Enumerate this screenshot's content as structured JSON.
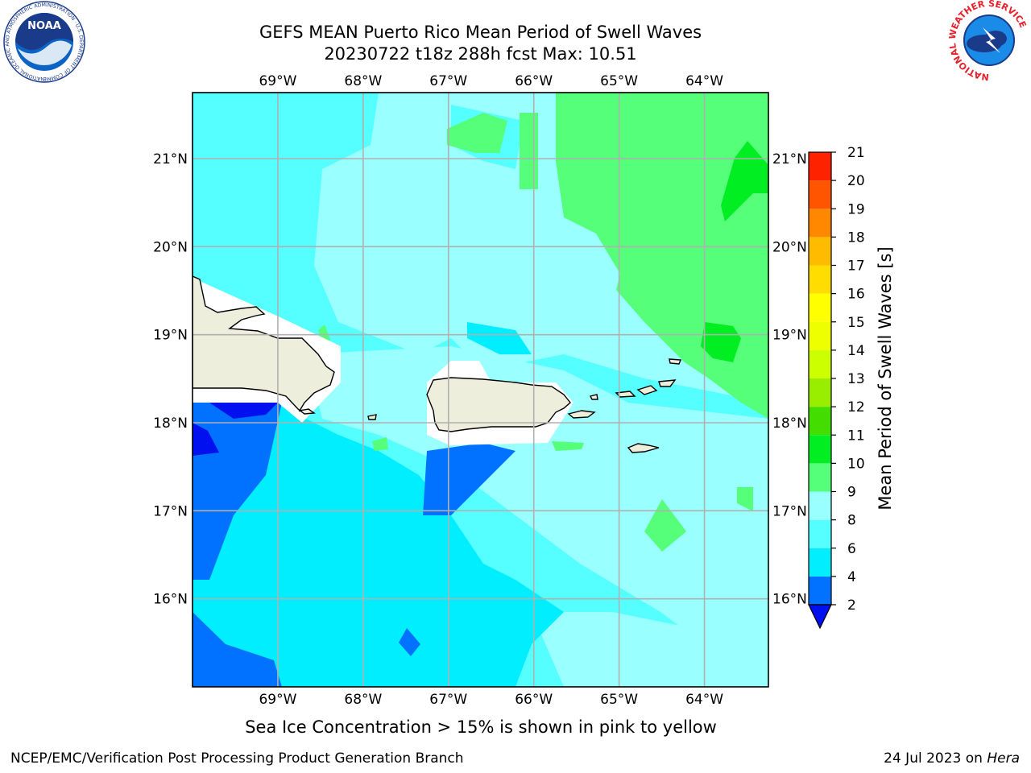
{
  "title": {
    "line1": "GEFS MEAN Puerto Rico Mean Period of Swell Waves",
    "line2": "20230722 t18z 288h fcst   Max: 10.51"
  },
  "map": {
    "lon_ticks": [
      "69°W",
      "68°W",
      "67°W",
      "66°W",
      "65°W",
      "64°W"
    ],
    "lat_ticks": [
      "21°N",
      "20°N",
      "19°N",
      "18°N",
      "17°N",
      "16°N"
    ],
    "lon_values": [
      -69,
      -68,
      -67,
      -66,
      -65,
      -64
    ],
    "lat_values": [
      21,
      20,
      19,
      18,
      17,
      16
    ],
    "lon_range": [
      -70,
      -63.25
    ],
    "lat_range": [
      15,
      21.75
    ],
    "ocean_color": "#99ffff",
    "land_color": "#eeeedd"
  },
  "colorbar": {
    "label": "Mean Period of Swell Waves [s]",
    "ticks": [
      "2",
      "4",
      "6",
      "8",
      "9",
      "10",
      "11",
      "12",
      "13",
      "14",
      "15",
      "16",
      "17",
      "18",
      "19",
      "20",
      "21"
    ],
    "colors": [
      "#0072ff",
      "#00eeff",
      "#55ffff",
      "#99ffff",
      "#55ff7a",
      "#00ee22",
      "#44dd00",
      "#99ee00",
      "#ccff00",
      "#eeff00",
      "#ffff00",
      "#ffdd00",
      "#ffbb00",
      "#ff8800",
      "#ff5500",
      "#ff2200"
    ],
    "under_color": "#0010ee"
  },
  "note": "Sea Ice Concentration > 15% is shown in pink to yellow",
  "footer": {
    "left": "NCEP/EMC/Verification Post Processing Product Generation Branch",
    "right_date": "24 Jul 2023 on ",
    "right_host": "Hera"
  },
  "logos": {
    "left": "NOAA",
    "left_ring": "NATIONAL OCEANIC AND ATMOSPHERIC ADMINISTRATION · U.S. DEPARTMENT OF COMMERCE",
    "right_ring": "NATIONAL WEATHER SERVICE"
  }
}
